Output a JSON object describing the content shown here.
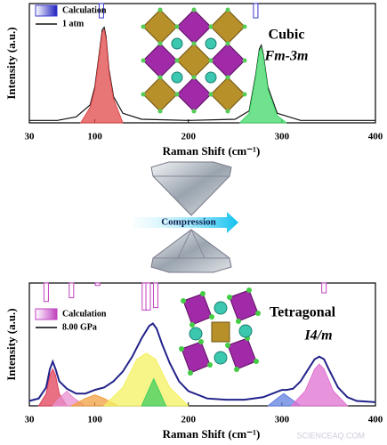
{
  "chart_data": [
    {
      "type": "line",
      "annotations": {
        "phase": "Cubic",
        "space_group": "Fm-3m"
      },
      "xlabel": "Raman Shift (cm⁻¹)",
      "ylabel": "Intensity (a.u.)",
      "xlim": [
        30,
        400
      ],
      "xticks": [
        30,
        100,
        200,
        300,
        400
      ],
      "ylim": [
        0,
        1
      ],
      "calculation": {
        "name": "Calculation",
        "color": "#3a3ad0",
        "x": [
          107,
          272
        ],
        "values": [
          0.12,
          0.12
        ]
      },
      "series": [
        {
          "name": "1 atm",
          "color": "#111111",
          "style": "line",
          "x": [
            30,
            60,
            80,
            95,
            100,
            105,
            108,
            110,
            112,
            115,
            120,
            130,
            150,
            200,
            250,
            265,
            272,
            276,
            278,
            280,
            285,
            295,
            320,
            400
          ],
          "values": [
            0.02,
            0.02,
            0.05,
            0.15,
            0.3,
            0.6,
            0.78,
            0.8,
            0.72,
            0.45,
            0.22,
            0.08,
            0.03,
            0.02,
            0.03,
            0.1,
            0.4,
            0.62,
            0.65,
            0.58,
            0.3,
            0.08,
            0.02,
            0.02
          ]
        },
        {
          "color": "#e04848",
          "style": "area",
          "x": [
            85,
            95,
            100,
            105,
            108,
            110,
            112,
            115,
            120,
            130
          ],
          "values": [
            0,
            0.13,
            0.28,
            0.58,
            0.76,
            0.78,
            0.7,
            0.43,
            0.2,
            0
          ]
        },
        {
          "color": "#40d868",
          "style": "area",
          "x": [
            255,
            265,
            272,
            276,
            278,
            280,
            285,
            295,
            305
          ],
          "values": [
            0,
            0.08,
            0.38,
            0.6,
            0.63,
            0.56,
            0.28,
            0.06,
            0
          ]
        }
      ]
    },
    {
      "type": "line",
      "annotations": {
        "phase": "Tetragonal",
        "space_group": "I4/m"
      },
      "xlabel": "Raman Shift (cm⁻¹)",
      "ylabel": "Intensity (a.u.)",
      "xlim": [
        30,
        400
      ],
      "xticks": [
        30,
        100,
        200,
        300,
        400
      ],
      "ylim": [
        0,
        1
      ],
      "calculation": {
        "name": "Calculation",
        "color": "#c040c0",
        "x": [
          48,
          75,
          103,
          153,
          157,
          165,
          345
        ],
        "values": [
          0.15,
          0.12,
          0.02,
          0.22,
          0.22,
          0.2,
          0.08
        ]
      },
      "series": [
        {
          "color": "#e0405a",
          "style": "area",
          "x": [
            40,
            48,
            52,
            55,
            58,
            62,
            70
          ],
          "values": [
            0,
            0.1,
            0.25,
            0.3,
            0.25,
            0.1,
            0
          ]
        },
        {
          "color": "#e88fd0",
          "style": "area",
          "x": [
            55,
            62,
            70,
            78,
            90
          ],
          "values": [
            0,
            0.06,
            0.12,
            0.06,
            0
          ]
        },
        {
          "color": "#f2a040",
          "style": "area",
          "x": [
            75,
            90,
            100,
            110,
            125
          ],
          "values": [
            0,
            0.06,
            0.09,
            0.06,
            0
          ]
        },
        {
          "color": "#f4f060",
          "style": "area",
          "x": [
            110,
            130,
            145,
            155,
            165,
            180,
            200
          ],
          "values": [
            0,
            0.15,
            0.38,
            0.43,
            0.38,
            0.15,
            0
          ]
        },
        {
          "color": "#40d060",
          "style": "area",
          "x": [
            150,
            157,
            163,
            169,
            176
          ],
          "values": [
            0,
            0.12,
            0.22,
            0.12,
            0
          ]
        },
        {
          "color": "#6080e0",
          "style": "area",
          "x": [
            285,
            295,
            302,
            309,
            320
          ],
          "values": [
            0,
            0.06,
            0.1,
            0.06,
            0
          ]
        },
        {
          "color": "#e070d0",
          "style": "area",
          "x": [
            310,
            325,
            335,
            340,
            345,
            355,
            370
          ],
          "values": [
            0,
            0.12,
            0.3,
            0.34,
            0.3,
            0.12,
            0
          ]
        },
        {
          "name": "8.00 GPa",
          "color": "#22228a",
          "style": "line",
          "x": [
            30,
            40,
            48,
            52,
            55,
            58,
            62,
            70,
            80,
            90,
            100,
            110,
            120,
            130,
            140,
            150,
            158,
            162,
            166,
            172,
            180,
            190,
            200,
            220,
            240,
            260,
            280,
            290,
            300,
            305,
            312,
            320,
            330,
            335,
            340,
            345,
            350,
            360,
            370,
            380,
            400
          ],
          "values": [
            0.04,
            0.06,
            0.15,
            0.3,
            0.36,
            0.3,
            0.2,
            0.14,
            0.1,
            0.1,
            0.13,
            0.15,
            0.2,
            0.28,
            0.4,
            0.55,
            0.65,
            0.67,
            0.63,
            0.5,
            0.35,
            0.2,
            0.12,
            0.06,
            0.05,
            0.05,
            0.07,
            0.1,
            0.13,
            0.13,
            0.14,
            0.2,
            0.32,
            0.38,
            0.4,
            0.38,
            0.3,
            0.15,
            0.07,
            0.04,
            0.03
          ]
        }
      ]
    }
  ],
  "arrow_label": "Compression",
  "watermark": "SCIENCEAQ.COM"
}
